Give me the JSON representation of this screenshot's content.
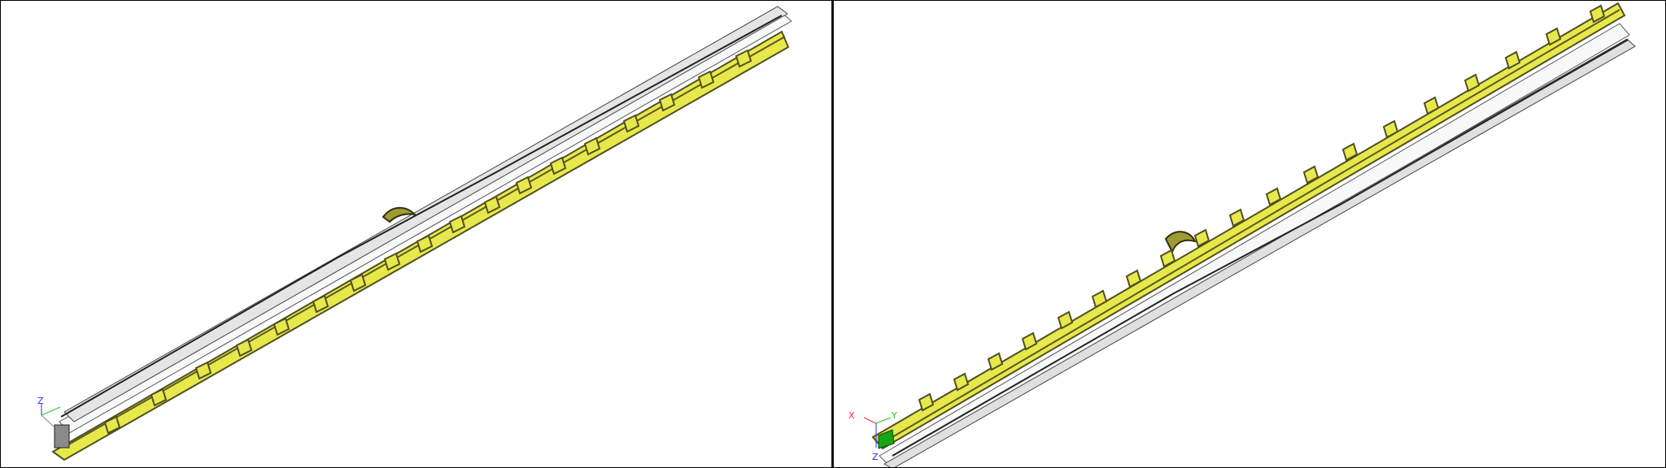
{
  "views": {
    "left": {
      "triad": {
        "z_label": "Z"
      }
    },
    "right": {
      "triad": {
        "x_label": "X",
        "y_label": "Y",
        "z_label": "Z"
      }
    }
  },
  "colors": {
    "part_fill": "#e7e84b",
    "part_edge": "#4f4f22",
    "housing": "#d8d8d8",
    "axis_x": "#ff2a2a",
    "axis_y": "#20c020",
    "axis_z": "#2a2aff",
    "divider": "#111111"
  }
}
